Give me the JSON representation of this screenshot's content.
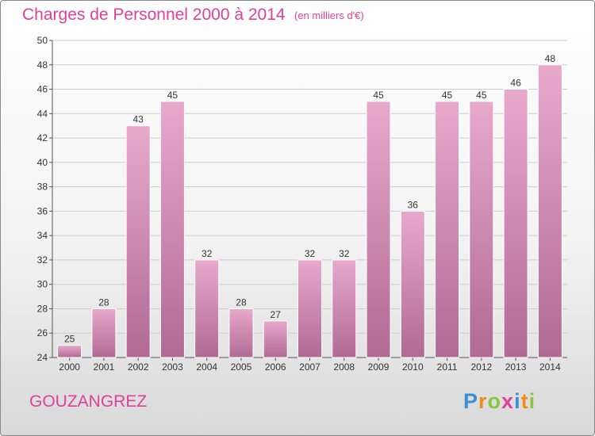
{
  "title": "Charges de Personnel 2000 à 2014",
  "subtitle": "(en milliers d'€)",
  "commune": "GOUZANGREZ",
  "logo": {
    "text": "Proxiti",
    "letters": [
      {
        "ch": "P",
        "color": "#3b8fd6"
      },
      {
        "ch": "r",
        "color": "#f08a1c"
      },
      {
        "ch": "o",
        "color": "#8cc63e"
      },
      {
        "ch": "x",
        "color": "#e0409a"
      },
      {
        "ch": "i",
        "color": "#3b8fd6"
      },
      {
        "ch": "t",
        "color": "#f08a1c"
      },
      {
        "ch": "i",
        "color": "#8cc63e"
      }
    ]
  },
  "colors": {
    "bar_top": "#e8a9cd",
    "bar_bottom": "#b06a94",
    "bar_stroke": "#ffffff",
    "text": "#e0409a",
    "axis_text": "#333333",
    "grid": "#cccccc"
  },
  "chart_data": {
    "type": "bar",
    "categories": [
      "2000",
      "2001",
      "2002",
      "2003",
      "2004",
      "2005",
      "2006",
      "2007",
      "2008",
      "2009",
      "2010",
      "2011",
      "2012",
      "2013",
      "2014"
    ],
    "values": [
      25,
      28,
      43,
      45,
      32,
      28,
      27,
      32,
      32,
      45,
      36,
      45,
      45,
      46,
      48
    ],
    "ylim": [
      24,
      50
    ],
    "yticks": [
      24,
      26,
      28,
      30,
      32,
      34,
      36,
      38,
      40,
      42,
      44,
      46,
      48,
      50
    ],
    "grid": true,
    "data_labels": true
  }
}
